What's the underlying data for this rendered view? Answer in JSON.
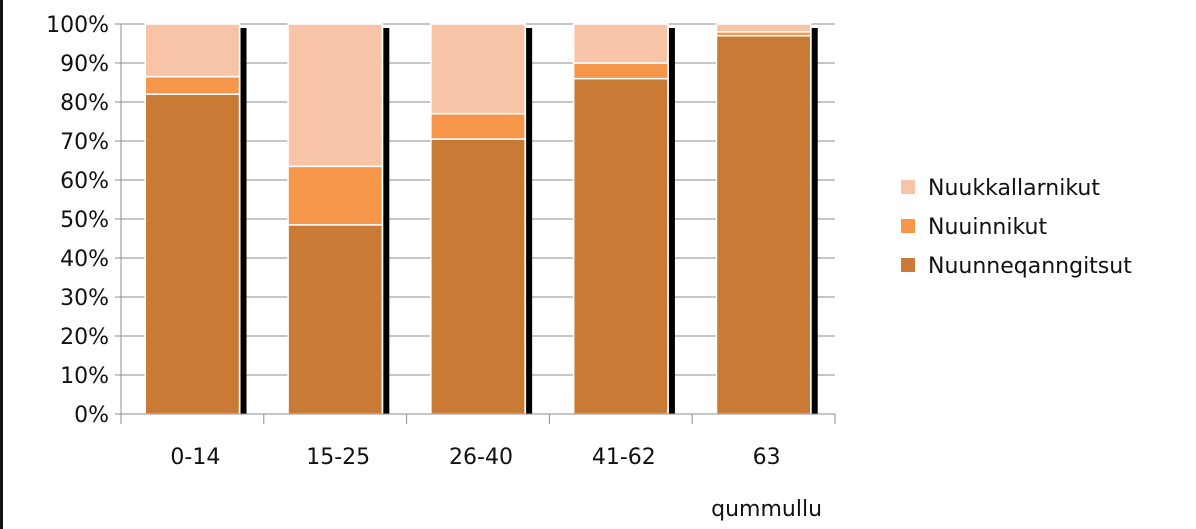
{
  "chart_data": {
    "type": "bar",
    "stacked": true,
    "percent": true,
    "categories": [
      "0-14",
      "15-25",
      "26-40",
      "41-62",
      "63\nqummullu"
    ],
    "series": [
      {
        "name": "Nuunneqanngitsut",
        "color": "#c97a35",
        "values": [
          82,
          48.5,
          70.5,
          86,
          97
        ]
      },
      {
        "name": "Nuuinnikut",
        "color": "#f5964b",
        "values": [
          4.5,
          15,
          6.5,
          4,
          1
        ]
      },
      {
        "name": "Nuukkallarnikut",
        "color": "#f8c4a8",
        "values": [
          13.5,
          36.5,
          23,
          10,
          2
        ]
      }
    ],
    "yticks": [
      "0%",
      "10%",
      "20%",
      "30%",
      "40%",
      "50%",
      "60%",
      "70%",
      "80%",
      "90%",
      "100%"
    ],
    "ylim": [
      0,
      100
    ],
    "grid": true,
    "legend_position": "right"
  }
}
